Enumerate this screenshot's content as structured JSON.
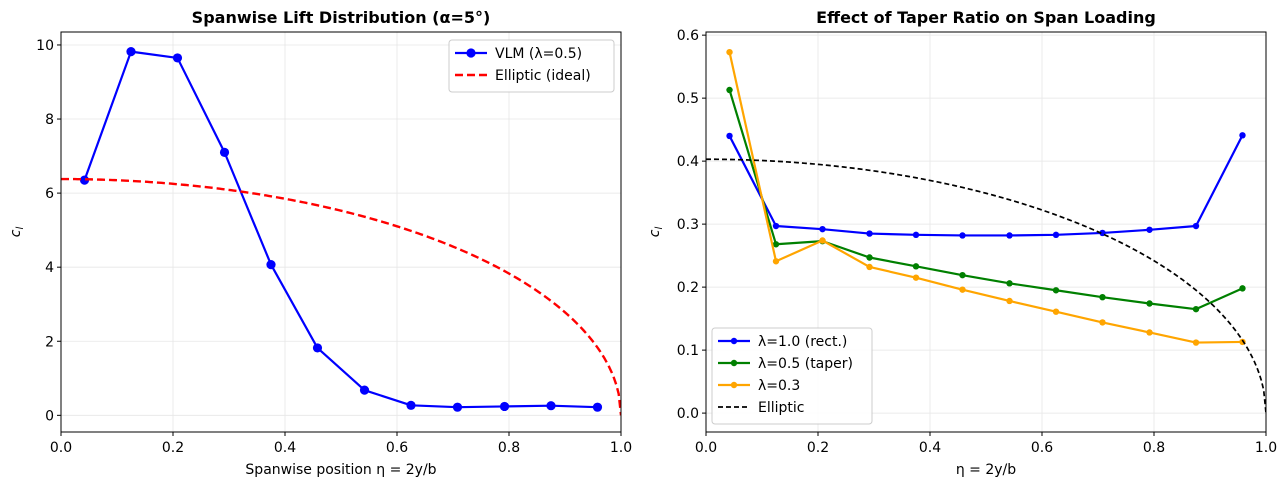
{
  "chart_data": [
    {
      "type": "line",
      "title": "Spanwise Lift Distribution (α=5°)",
      "xlabel": "Spanwise position η = 2y/b",
      "ylabel": "c_l",
      "xlim": [
        0,
        1.0
      ],
      "ylim": [
        -0.45,
        10.35
      ],
      "xticks": [
        "0.0",
        "0.2",
        "0.4",
        "0.6",
        "0.8",
        "1.0"
      ],
      "yticks": [
        "0",
        "2",
        "4",
        "6",
        "8",
        "10"
      ],
      "grid": true,
      "legend_position": "top-right",
      "series": [
        {
          "name": "VLM (λ=0.5)",
          "color": "#0000ff",
          "style": "solid",
          "marker": "circle",
          "x": [
            0.042,
            0.125,
            0.208,
            0.292,
            0.375,
            0.458,
            0.542,
            0.625,
            0.708,
            0.792,
            0.875,
            0.958
          ],
          "y": [
            6.35,
            9.82,
            9.65,
            7.1,
            4.07,
            1.82,
            0.68,
            0.27,
            0.22,
            0.24,
            0.26,
            0.22
          ]
        },
        {
          "name": "Elliptic (ideal)",
          "color": "#ff0000",
          "style": "dashed",
          "marker": "none",
          "curve": "elliptic",
          "amplitude": 6.38
        }
      ]
    },
    {
      "type": "line",
      "title": "Effect of Taper Ratio on Span Loading",
      "xlabel": "η = 2y/b",
      "ylabel": "c_l",
      "xlim": [
        0,
        1.0
      ],
      "ylim": [
        -0.03,
        0.605
      ],
      "xticks": [
        "0.0",
        "0.2",
        "0.4",
        "0.6",
        "0.8",
        "1.0"
      ],
      "yticks": [
        "0.0",
        "0.1",
        "0.2",
        "0.3",
        "0.4",
        "0.5",
        "0.6"
      ],
      "grid": true,
      "legend_position": "bottom-left",
      "series": [
        {
          "name": "λ=1.0 (rect.)",
          "color": "#0000ff",
          "style": "solid",
          "marker": "circle",
          "x": [
            0.042,
            0.125,
            0.208,
            0.292,
            0.375,
            0.458,
            0.542,
            0.625,
            0.708,
            0.792,
            0.875,
            0.958
          ],
          "y": [
            0.44,
            0.297,
            0.292,
            0.285,
            0.283,
            0.282,
            0.282,
            0.283,
            0.286,
            0.291,
            0.297,
            0.441
          ]
        },
        {
          "name": "λ=0.5 (taper)",
          "color": "#008000",
          "style": "solid",
          "marker": "circle",
          "x": [
            0.042,
            0.125,
            0.208,
            0.292,
            0.375,
            0.458,
            0.542,
            0.625,
            0.708,
            0.792,
            0.875,
            0.958
          ],
          "y": [
            0.513,
            0.268,
            0.273,
            0.247,
            0.233,
            0.219,
            0.206,
            0.195,
            0.184,
            0.174,
            0.165,
            0.198
          ]
        },
        {
          "name": "λ=0.3",
          "color": "#ffa500",
          "style": "solid",
          "marker": "circle",
          "x": [
            0.042,
            0.125,
            0.208,
            0.292,
            0.375,
            0.458,
            0.542,
            0.625,
            0.708,
            0.792,
            0.875,
            0.958
          ],
          "y": [
            0.573,
            0.241,
            0.274,
            0.232,
            0.215,
            0.196,
            0.178,
            0.161,
            0.144,
            0.128,
            0.112,
            0.113
          ]
        },
        {
          "name": "Elliptic",
          "color": "#000000",
          "style": "dashed",
          "marker": "none",
          "curve": "elliptic",
          "amplitude": 0.403
        }
      ]
    }
  ]
}
